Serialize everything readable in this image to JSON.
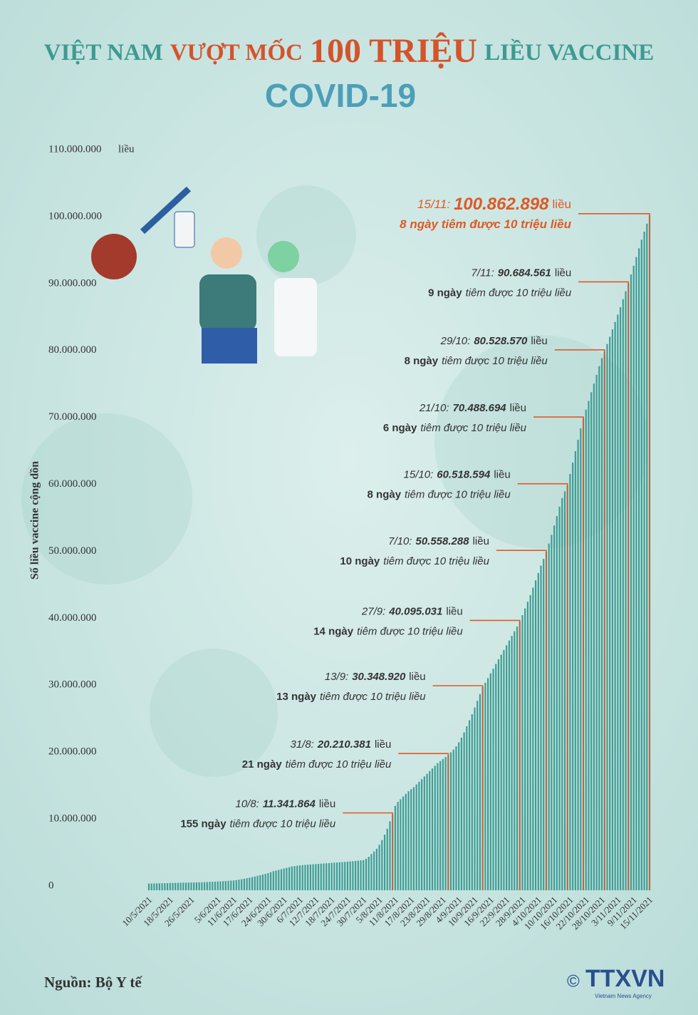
{
  "header": {
    "title_parts": [
      "VIỆT NAM",
      "VƯỢT MỐC",
      "100 TRIỆU",
      "LIỀU VACCINE"
    ],
    "subtitle": "COVID-19"
  },
  "chart_data": {
    "type": "bar",
    "y_label": "Số liều vaccine cộng dồn",
    "y_unit": "liều",
    "color": "#3f9d95",
    "annotation_color": "#dd5a26",
    "ylim": [
      0,
      110000000
    ],
    "yticks": [
      0,
      {
        "value": 10000000,
        "label": "10.000.000"
      },
      {
        "value": 20000000,
        "label": "20.000.000"
      },
      {
        "value": 30000000,
        "label": "30.000.000"
      },
      {
        "value": 40000000,
        "label": "40.000.000"
      },
      {
        "value": 50000000,
        "label": "50.000.000"
      },
      {
        "value": 60000000,
        "label": "60.000.000"
      },
      {
        "value": 70000000,
        "label": "70.000.000"
      },
      {
        "value": 80000000,
        "label": "80.000.000"
      },
      {
        "value": 90000000,
        "label": "90.000.000"
      },
      {
        "value": 100000000,
        "label": "100.000.000"
      },
      {
        "value": 110000000,
        "label": "110.000.000"
      }
    ],
    "categories": [
      "10/5/2021",
      null,
      null,
      null,
      null,
      null,
      null,
      null,
      "18/5/2021",
      null,
      null,
      null,
      null,
      null,
      null,
      null,
      "26/5/2021",
      null,
      null,
      null,
      null,
      null,
      null,
      null,
      null,
      null,
      "5/6/2021",
      null,
      null,
      null,
      null,
      null,
      "11/6/2021",
      null,
      null,
      null,
      null,
      null,
      "17/6/2021",
      null,
      null,
      null,
      null,
      null,
      null,
      "24/6/2021",
      null,
      null,
      null,
      null,
      null,
      "30/6/2021",
      null,
      null,
      null,
      null,
      null,
      "6/7/2021",
      null,
      null,
      null,
      null,
      null,
      "12/7/2021",
      null,
      null,
      null,
      null,
      null,
      "18/7/2021",
      null,
      null,
      null,
      null,
      null,
      "24/7/2021",
      null,
      null,
      null,
      null,
      null,
      "30/7/2021",
      null,
      null,
      null,
      null,
      null,
      "5/8/2021",
      null,
      null,
      null,
      null,
      null,
      "11/8/2021",
      null,
      null,
      null,
      null,
      null,
      "17/8/2021",
      null,
      null,
      null,
      null,
      null,
      "23/8/2021",
      null,
      null,
      null,
      null,
      null,
      "29/8/2021",
      null,
      null,
      null,
      null,
      null,
      "4/9/2021",
      null,
      null,
      null,
      null,
      null,
      "10/9/2021",
      null,
      null,
      null,
      null,
      null,
      "16/9/2021",
      null,
      null,
      null,
      null,
      null,
      "22/9/2021",
      null,
      null,
      null,
      null,
      null,
      "28/9/2021",
      null,
      null,
      null,
      null,
      null,
      "4/10/2021",
      null,
      null,
      null,
      null,
      null,
      "10/10/2021",
      null,
      null,
      null,
      null,
      null,
      "16/10/2021",
      null,
      null,
      null,
      null,
      null,
      "22/10/2021",
      null,
      null,
      null,
      null,
      null,
      "28/10/2021",
      null,
      null,
      null,
      null,
      null,
      "3/11/2021",
      null,
      null,
      null,
      null,
      null,
      "9/11/2021",
      null,
      null,
      null,
      null,
      null,
      "15/11/2021"
    ],
    "values": [
      1000000,
      1010000,
      1020000,
      1030000,
      1040000,
      1050000,
      1060000,
      1070000,
      1080000,
      1090000,
      1100000,
      1110000,
      1120000,
      1130000,
      1140000,
      1150000,
      1160000,
      1170000,
      1180000,
      1190000,
      1200000,
      1210000,
      1230000,
      1250000,
      1270000,
      1290000,
      1310000,
      1330000,
      1350000,
      1380000,
      1410000,
      1440000,
      1470000,
      1520000,
      1580000,
      1650000,
      1720000,
      1800000,
      1880000,
      1960000,
      2050000,
      2150000,
      2250000,
      2350000,
      2450000,
      2550000,
      2700000,
      2850000,
      2950000,
      3050000,
      3150000,
      3250000,
      3350000,
      3450000,
      3550000,
      3620000,
      3680000,
      3720000,
      3760000,
      3790000,
      3820000,
      3850000,
      3880000,
      3910000,
      3940000,
      3970000,
      4000000,
      4030000,
      4060000,
      4090000,
      4120000,
      4150000,
      4180000,
      4210000,
      4240000,
      4270000,
      4300000,
      4340000,
      4380000,
      4420000,
      4460000,
      4500000,
      4700000,
      5000000,
      5400000,
      5800000,
      6200000,
      6800000,
      7500000,
      8300000,
      9200000,
      10300000,
      11341864,
      12600000,
      13200000,
      13600000,
      14000000,
      14400000,
      14800000,
      15100000,
      15400000,
      15800000,
      16200000,
      16600000,
      17000000,
      17400000,
      17800000,
      18200000,
      18600000,
      19000000,
      19300000,
      19600000,
      19900000,
      20210381,
      20600000,
      21000000,
      21500000,
      22100000,
      22800000,
      23600000,
      24500000,
      25400000,
      26300000,
      27300000,
      28300000,
      29300000,
      30348920,
      31000000,
      31700000,
      32400000,
      33100000,
      33800000,
      34500000,
      35200000,
      35900000,
      36600000,
      37300000,
      38000000,
      38700000,
      39400000,
      40095031,
      41100000,
      42100000,
      43100000,
      44100000,
      45200000,
      46300000,
      47400000,
      48500000,
      49500000,
      50558288,
      51800000,
      53100000,
      54500000,
      55900000,
      57300000,
      58600000,
      59600000,
      60518594,
      62200000,
      63900000,
      65600000,
      67300000,
      69000000,
      70488694,
      71800000,
      73100000,
      74400000,
      75700000,
      77000000,
      78300000,
      79500000,
      80528570,
      81600000,
      82700000,
      83800000,
      84900000,
      86000000,
      87100000,
      88300000,
      89500000,
      90684561,
      92000000,
      93300000,
      94600000,
      95900000,
      97200000,
      98400000,
      99600000,
      100862898
    ],
    "annotations": [
      {
        "date": "15/11:",
        "value": 100862898,
        "value_label": "100.862.898",
        "note_bold": "8 ngày tiêm được 10 triệu liều",
        "note_rest": ""
      },
      {
        "date": "7/11:",
        "value": 90684561,
        "value_label": "90.684.561",
        "note_bold": "9 ngày",
        "note_rest": "tiêm được 10 triệu liều"
      },
      {
        "date": "29/10:",
        "value": 80528570,
        "value_label": "80.528.570",
        "note_bold": "8 ngày",
        "note_rest": "tiêm được 10 triệu liều"
      },
      {
        "date": "21/10:",
        "value": 70488694,
        "value_label": "70.488.694",
        "note_bold": "6 ngày",
        "note_rest": "tiêm được 10 triệu liều"
      },
      {
        "date": "15/10:",
        "value": 60518594,
        "value_label": "60.518.594",
        "note_bold": "8 ngày",
        "note_rest": "tiêm được 10 triệu liều"
      },
      {
        "date": "7/10:",
        "value": 50558288,
        "value_label": "50.558.288",
        "note_bold": "10 ngày",
        "note_rest": "tiêm được 10 triệu liều"
      },
      {
        "date": "27/9:",
        "value": 40095031,
        "value_label": "40.095.031",
        "note_bold": "14 ngày",
        "note_rest": "tiêm được 10 triệu liều"
      },
      {
        "date": "13/9:",
        "value": 30348920,
        "value_label": "30.348.920",
        "note_bold": "13 ngày",
        "note_rest": "tiêm được 10 triệu liều"
      },
      {
        "date": "31/8:",
        "value": 20210381,
        "value_label": "20.210.381",
        "note_bold": "21 ngày",
        "note_rest": "tiêm được 10 triệu liều"
      },
      {
        "date": "10/8:",
        "value": 11341864,
        "value_label": "11.341.864",
        "note_bold": "155 ngày",
        "note_rest": "tiêm được 10 triệu liều"
      }
    ]
  },
  "footer": {
    "source": "Nguồn: Bộ Y tế",
    "copyright": "©",
    "logo": "TTXVN",
    "logo_sub": "Vietnam News Agency"
  }
}
